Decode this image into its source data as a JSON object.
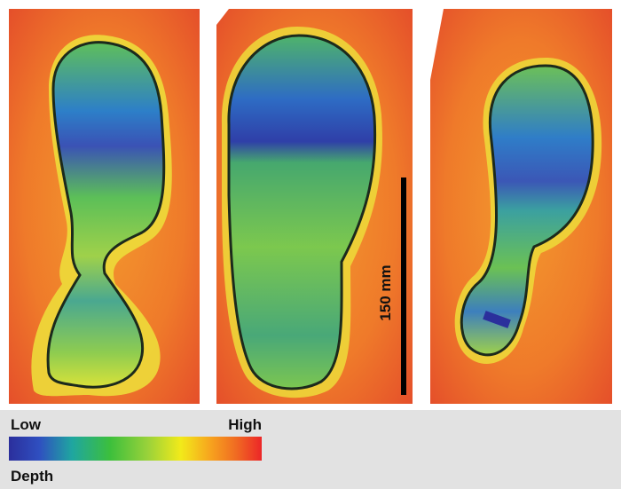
{
  "legend": {
    "low": "Low",
    "high": "High",
    "title": "Depth"
  },
  "scale_bar": {
    "label": "150 mm"
  }
}
